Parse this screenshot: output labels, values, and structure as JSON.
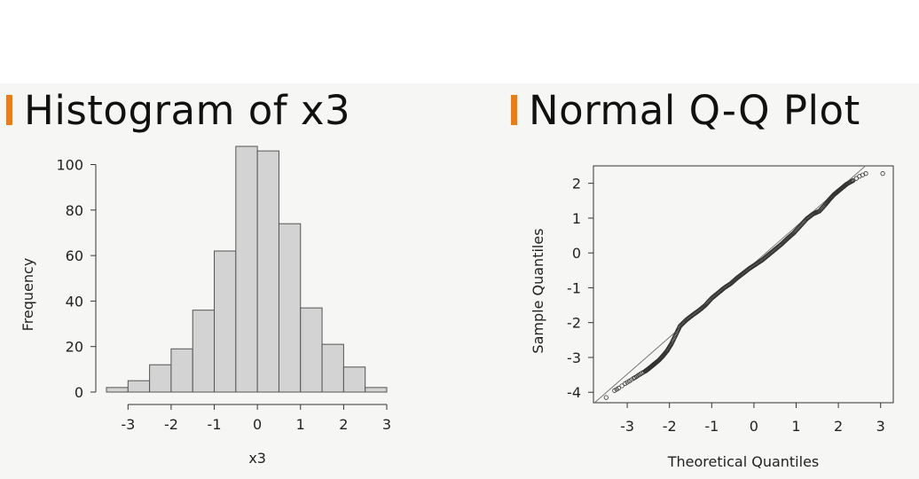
{
  "colors": {
    "accent": "#f07c10",
    "bar_fill": "#d3d3d3",
    "bar_stroke": "#555555",
    "axis": "#333333",
    "point": "#333333"
  },
  "panels": {
    "left_title": "Histogram of x3",
    "right_title": "Normal Q-Q Plot"
  },
  "chart_data": [
    {
      "type": "bar",
      "title": "Histogram of x3",
      "xlabel": "x3",
      "ylabel": "Frequency",
      "bin_edges": [
        -3.5,
        -3.0,
        -2.5,
        -2.0,
        -1.5,
        -1.0,
        -0.5,
        0.0,
        0.5,
        1.0,
        1.5,
        2.0,
        2.5,
        3.0
      ],
      "values": [
        2,
        5,
        12,
        19,
        36,
        62,
        108,
        106,
        74,
        37,
        21,
        11,
        2
      ],
      "xlim": [
        -3.5,
        3.0
      ],
      "ylim": [
        0,
        108
      ],
      "xticks": [
        -3,
        -2,
        -1,
        0,
        1,
        2,
        3
      ],
      "yticks": [
        0,
        20,
        40,
        60,
        80,
        100
      ],
      "grid": false
    },
    {
      "type": "scatter",
      "title": "Normal Q-Q Plot",
      "xlabel": "Theoretical Quantiles",
      "ylabel": "Sample Quantiles",
      "xlim": [
        -3.8,
        3.3
      ],
      "ylim": [
        -4.3,
        2.5
      ],
      "xticks": [
        -3,
        -2,
        -1,
        0,
        1,
        2,
        3
      ],
      "yticks": [
        -4,
        -3,
        -2,
        -1,
        0,
        1,
        2
      ],
      "reference_line": {
        "intercept": -0.3,
        "slope": 1.06
      },
      "points": [
        [
          -3.5,
          -4.15
        ],
        [
          -3.3,
          -3.95
        ],
        [
          -3.2,
          -3.88
        ],
        [
          -3.05,
          -3.75
        ],
        [
          -2.95,
          -3.68
        ],
        [
          -2.85,
          -3.6
        ],
        [
          -2.78,
          -3.55
        ],
        [
          -2.72,
          -3.5
        ],
        [
          -2.65,
          -3.45
        ],
        [
          -2.58,
          -3.4
        ],
        [
          -2.5,
          -3.33
        ],
        [
          -2.42,
          -3.25
        ],
        [
          -2.35,
          -3.18
        ],
        [
          -2.25,
          -3.08
        ],
        [
          -2.15,
          -2.95
        ],
        [
          -2.05,
          -2.8
        ],
        [
          -1.95,
          -2.6
        ],
        [
          -1.85,
          -2.35
        ],
        [
          -1.75,
          -2.1
        ],
        [
          -1.6,
          -1.92
        ],
        [
          -1.45,
          -1.78
        ],
        [
          -1.3,
          -1.65
        ],
        [
          -1.15,
          -1.5
        ],
        [
          -1.0,
          -1.3
        ],
        [
          -0.85,
          -1.15
        ],
        [
          -0.7,
          -1.0
        ],
        [
          -0.55,
          -0.88
        ],
        [
          -0.4,
          -0.72
        ],
        [
          -0.25,
          -0.58
        ],
        [
          -0.1,
          -0.44
        ],
        [
          0.05,
          -0.32
        ],
        [
          0.2,
          -0.2
        ],
        [
          0.35,
          -0.05
        ],
        [
          0.5,
          0.1
        ],
        [
          0.65,
          0.25
        ],
        [
          0.8,
          0.42
        ],
        [
          0.95,
          0.58
        ],
        [
          1.1,
          0.78
        ],
        [
          1.25,
          0.98
        ],
        [
          1.4,
          1.12
        ],
        [
          1.55,
          1.2
        ],
        [
          1.7,
          1.4
        ],
        [
          1.8,
          1.55
        ],
        [
          1.9,
          1.68
        ],
        [
          2.0,
          1.78
        ],
        [
          2.1,
          1.88
        ],
        [
          2.2,
          1.98
        ],
        [
          2.35,
          2.08
        ],
        [
          2.5,
          2.2
        ],
        [
          2.65,
          2.28
        ],
        [
          3.05,
          2.28
        ]
      ]
    }
  ]
}
